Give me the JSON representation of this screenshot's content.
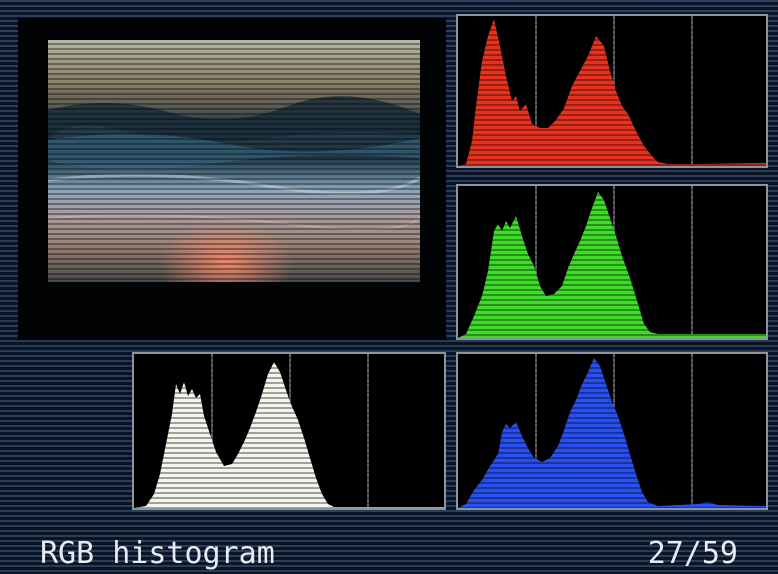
{
  "screen": {
    "mode_label": "RGB histogram",
    "frame_counter": "27/59"
  },
  "histograms": [
    {
      "id": "red",
      "name": "red",
      "color": "#e8321e"
    },
    {
      "id": "green",
      "name": "green",
      "color": "#3cdc28"
    },
    {
      "id": "blue",
      "name": "blue",
      "color": "#2850f0"
    },
    {
      "id": "luma",
      "name": "luminance",
      "color": "#f4f6ee"
    }
  ],
  "colors": {
    "frame_border": "#8d94a0",
    "screen_bg": "#0e1a2c",
    "text": "#e8ecf2"
  }
}
